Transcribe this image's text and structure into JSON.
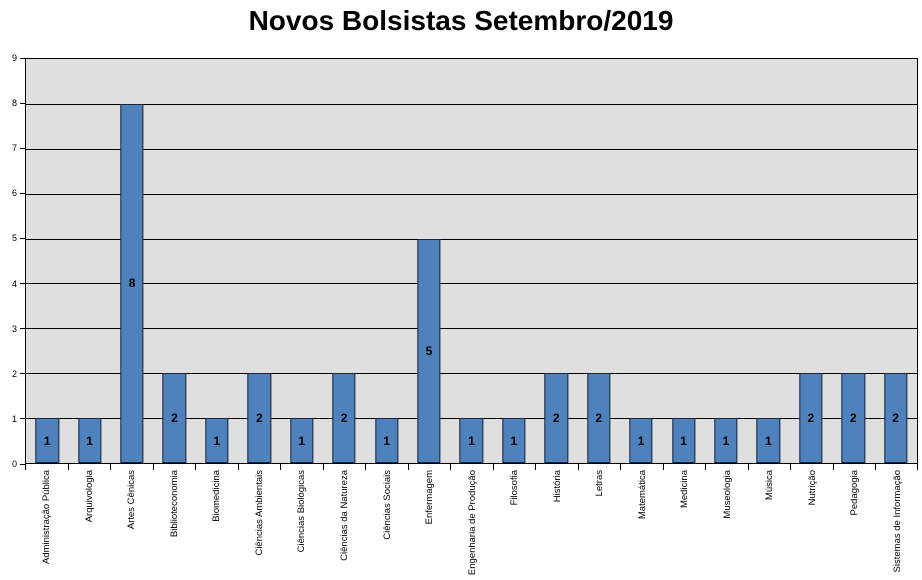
{
  "chart_data": {
    "type": "bar",
    "title": "Novos Bolsistas Setembro/2019",
    "categories": [
      "Administração Pública",
      "Arquivologia",
      "Artes Cênicas",
      "Biblioteconomia",
      "Biomedicina",
      "Ciências Ambientais",
      "Ciências Biológicas",
      "Ciências da Natureza",
      "Ciências Sociais",
      "Enfermagem",
      "Engenharia de Produção",
      "Filosofia",
      "História",
      "Letras",
      "Matemática",
      "Medicina",
      "Museologia",
      "Música",
      "Nutrição",
      "Pedagogia",
      "Sistemas de Informação"
    ],
    "values": [
      1,
      1,
      8,
      2,
      1,
      2,
      1,
      2,
      1,
      5,
      1,
      1,
      2,
      2,
      1,
      1,
      1,
      1,
      2,
      2,
      2
    ],
    "xlabel": "",
    "ylabel": "",
    "ylim": [
      0,
      9
    ],
    "yticks": [
      0,
      1,
      2,
      3,
      4,
      5,
      6,
      7,
      8,
      9
    ],
    "grid": "horizontal",
    "legend_position": "none",
    "data_labels_position": "center",
    "colors": {
      "bar_fill": "#4F81BD",
      "bar_border": "#1B2438",
      "plot_background": "#DFDFDF",
      "gridline": "#000000",
      "axis": "#000000",
      "title_text": "#000000",
      "page_background": "#FFFFFF"
    }
  }
}
